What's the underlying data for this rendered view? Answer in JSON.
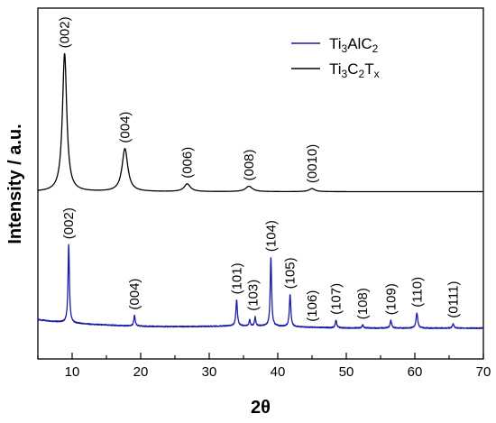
{
  "chart_data": {
    "type": "line",
    "xlabel": "2θ",
    "ylabel": "Intensity / a.u.",
    "xlim": [
      5,
      70
    ],
    "x_ticks": [
      10,
      20,
      30,
      40,
      50,
      60,
      70
    ],
    "y_tick_labels": "none",
    "grid": false,
    "legend_position": "top-right",
    "series": [
      {
        "name": "Ti3AlC2",
        "legend_base": "Ti",
        "legend_subs": [
          "3",
          "AlC",
          "2"
        ],
        "color": "#1a1aa8",
        "offset": 0,
        "baseline": 0.48,
        "peaks": [
          {
            "x": 9.5,
            "h": 5.1,
            "w": 0.12
          },
          {
            "x": 19.1,
            "h": 0.7,
            "w": 0.12
          },
          {
            "x": 34.0,
            "h": 1.7,
            "w": 0.13
          },
          {
            "x": 35.9,
            "h": 0.4,
            "w": 0.1
          },
          {
            "x": 36.7,
            "h": 0.6,
            "w": 0.1
          },
          {
            "x": 39.0,
            "h": 4.5,
            "w": 0.12
          },
          {
            "x": 41.8,
            "h": 2.1,
            "w": 0.13
          },
          {
            "x": 48.5,
            "h": 0.5,
            "w": 0.12
          },
          {
            "x": 52.4,
            "h": 0.2,
            "w": 0.12
          },
          {
            "x": 56.5,
            "h": 0.5,
            "w": 0.13
          },
          {
            "x": 60.3,
            "h": 1.0,
            "w": 0.15
          },
          {
            "x": 65.6,
            "h": 0.3,
            "w": 0.12
          }
        ],
        "peak_labels": [
          {
            "text": "(002)",
            "x": 9.5
          },
          {
            "text": "(004)",
            "x": 19.1
          },
          {
            "text": "(101)",
            "x": 34.0
          },
          {
            "text": "(103)",
            "x": 36.4
          },
          {
            "text": "(104)",
            "x": 39.0
          },
          {
            "text": "(105)",
            "x": 41.8
          },
          {
            "text": "(106)",
            "x": 45.0
          },
          {
            "text": "(107)",
            "x": 48.5
          },
          {
            "text": "(108)",
            "x": 52.4
          },
          {
            "text": "(109)",
            "x": 56.5
          },
          {
            "text": "(110)",
            "x": 60.3
          },
          {
            "text": "(0111)",
            "x": 65.6
          }
        ]
      },
      {
        "name": "Ti3C2Tx",
        "legend_base": "Ti",
        "legend_subs": [
          "3",
          "C",
          "2",
          "T",
          "x"
        ],
        "color": "#000000",
        "offset": 9.3,
        "baseline": 0.08,
        "peaks": [
          {
            "x": 8.9,
            "h": 9.0,
            "w": 0.38
          },
          {
            "x": 17.7,
            "h": 2.8,
            "w": 0.5
          },
          {
            "x": 26.8,
            "h": 0.5,
            "w": 0.55
          },
          {
            "x": 35.8,
            "h": 0.35,
            "w": 0.6
          },
          {
            "x": 45.0,
            "h": 0.2,
            "w": 0.5
          }
        ],
        "peak_labels": [
          {
            "text": "(002)",
            "x": 8.9
          },
          {
            "text": "(004)",
            "x": 17.7
          },
          {
            "text": "(006)",
            "x": 26.8
          },
          {
            "text": "(008)",
            "x": 35.8
          },
          {
            "text": "(0010)",
            "x": 45.0
          }
        ]
      }
    ]
  }
}
